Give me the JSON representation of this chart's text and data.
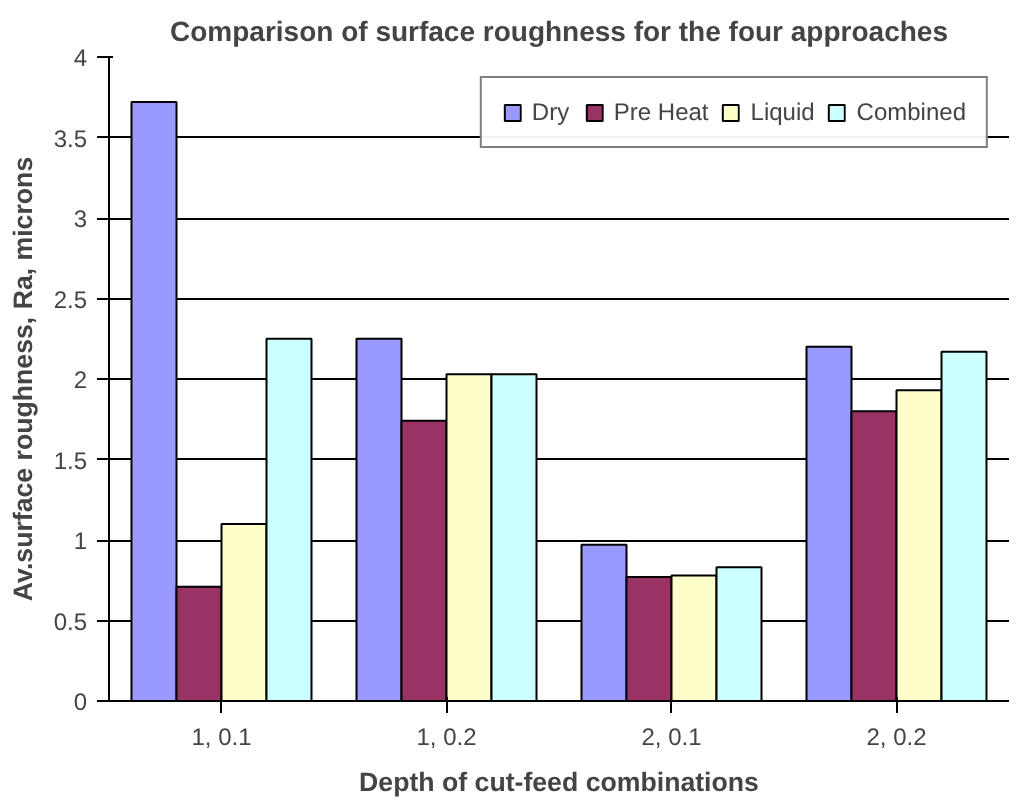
{
  "chart_data": {
    "type": "bar",
    "title": "Comparison of surface roughness for the four approaches",
    "xlabel": "Depth of cut-feed combinations",
    "ylabel": "Av.surface roughness, Ra, microns",
    "categories": [
      "1, 0.1",
      "1, 0.2",
      "2, 0.1",
      "2, 0.2"
    ],
    "series": [
      {
        "name": "Dry",
        "color": "#9999ff",
        "values": [
          3.72,
          2.25,
          0.97,
          2.2
        ]
      },
      {
        "name": "Pre Heat",
        "color": "#993366",
        "values": [
          0.71,
          1.74,
          0.77,
          1.8
        ]
      },
      {
        "name": "Liquid",
        "color": "#ffffcc",
        "values": [
          1.1,
          2.03,
          0.78,
          1.93
        ]
      },
      {
        "name": "Combined",
        "color": "#ccffff",
        "values": [
          2.25,
          2.03,
          0.83,
          2.17
        ]
      }
    ],
    "ylim": [
      0,
      4
    ],
    "yticks": [
      0,
      0.5,
      1,
      1.5,
      2,
      2.5,
      3,
      3.5,
      4
    ],
    "grid": "y",
    "legend": "top right"
  }
}
